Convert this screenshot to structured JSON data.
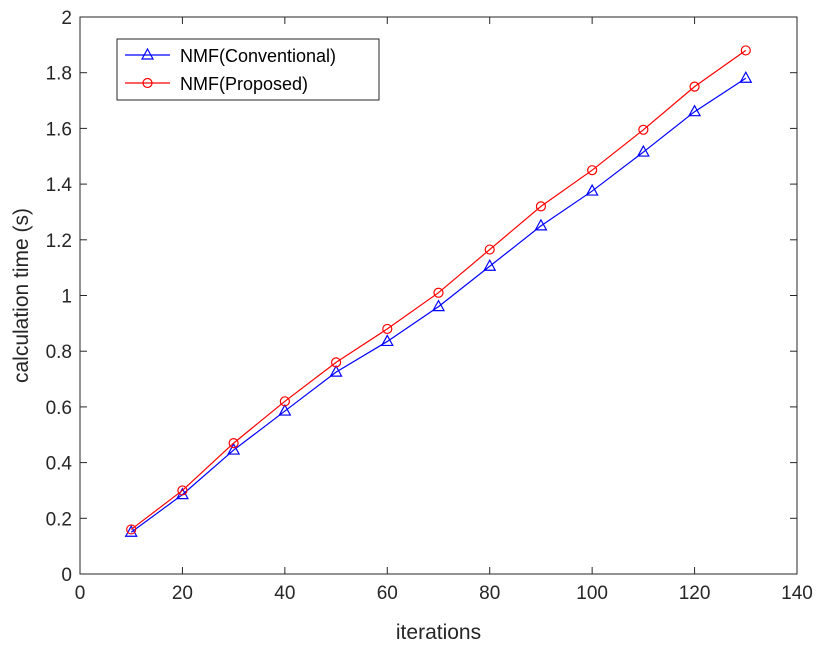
{
  "chart_data": {
    "type": "line",
    "title": "",
    "xlabel": "iterations",
    "ylabel": "calculation time (s)",
    "xlim": [
      0,
      140
    ],
    "ylim": [
      0,
      2
    ],
    "xticks": [
      0,
      20,
      40,
      60,
      80,
      100,
      120,
      140
    ],
    "yticks": [
      0,
      0.2,
      0.4,
      0.6,
      0.8,
      1,
      1.2,
      1.4,
      1.6,
      1.8,
      2
    ],
    "xtick_labels": [
      "0",
      "20",
      "40",
      "60",
      "80",
      "100",
      "120",
      "140"
    ],
    "ytick_labels": [
      "0",
      "0.2",
      "0.4",
      "0.6",
      "0.8",
      "1",
      "1.2",
      "1.4",
      "1.6",
      "1.8",
      "2"
    ],
    "grid": false,
    "legend_position": "top-left",
    "x": [
      10,
      20,
      30,
      40,
      50,
      60,
      70,
      80,
      90,
      100,
      110,
      120,
      130
    ],
    "series": [
      {
        "name": "NMF(Conventional)",
        "color": "#0000ff",
        "marker": "triangle",
        "values": [
          0.15,
          0.285,
          0.445,
          0.585,
          0.725,
          0.835,
          0.96,
          1.105,
          1.25,
          1.375,
          1.515,
          1.66,
          1.78
        ]
      },
      {
        "name": "NMF(Proposed)",
        "color": "#ff0000",
        "marker": "circle",
        "values": [
          0.16,
          0.3,
          0.47,
          0.62,
          0.76,
          0.88,
          1.01,
          1.165,
          1.32,
          1.45,
          1.595,
          1.75,
          1.88
        ]
      }
    ]
  }
}
